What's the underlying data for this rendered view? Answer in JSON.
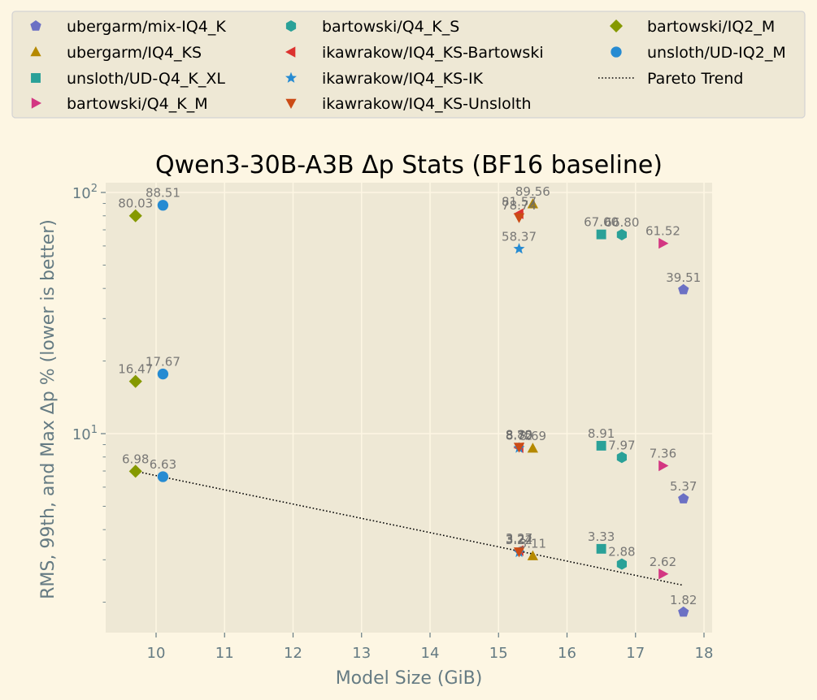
{
  "chart_data": {
    "type": "scatter",
    "title": "Qwen3-30B-A3B Δp Stats (BF16 baseline)",
    "xlabel": "Model Size (GiB)",
    "ylabel": "RMS, 99th, and Max Δp % (lower is better)",
    "xlim": [
      9.3,
      18.1
    ],
    "ylim": [
      1.55,
      115
    ],
    "yscale": "log",
    "grid": true,
    "legend_position": "top",
    "x_ticks": [
      {
        "value": 10,
        "label": "10"
      },
      {
        "value": 11,
        "label": "11"
      },
      {
        "value": 12,
        "label": "12"
      },
      {
        "value": 13,
        "label": "13"
      },
      {
        "value": 14,
        "label": "14"
      },
      {
        "value": 15,
        "label": "15"
      },
      {
        "value": 16,
        "label": "16"
      },
      {
        "value": 17,
        "label": "17"
      },
      {
        "value": 18,
        "label": "18"
      }
    ],
    "y_ticks": [
      {
        "value": 10,
        "base": "10",
        "exp": "1"
      },
      {
        "value": 100,
        "base": "10",
        "exp": "2"
      }
    ],
    "series": [
      {
        "name": "ubergarm/mix-IQ4_K",
        "marker": "pentagon",
        "color": "#6c71c4",
        "x": 17.7,
        "points": [
          {
            "y": 39.51,
            "label": "39.51"
          },
          {
            "y": 5.37,
            "label": "5.37"
          },
          {
            "y": 1.82,
            "label": "1.82"
          }
        ]
      },
      {
        "name": "ubergarm/IQ4_KS",
        "marker": "triangle-up",
        "color": "#b58900",
        "x": 15.5,
        "points": [
          {
            "y": 89.56,
            "label": "89.56"
          },
          {
            "y": 8.69,
            "label": "8.69"
          },
          {
            "y": 3.11,
            "label": "3.11"
          }
        ]
      },
      {
        "name": "unsloth/UD-Q4_K_XL",
        "marker": "square",
        "color": "#2aa198",
        "x": 16.5,
        "points": [
          {
            "y": 67.0,
            "label": "67.00"
          },
          {
            "y": 8.91,
            "label": "8.91"
          },
          {
            "y": 3.33,
            "label": "3.33"
          }
        ]
      },
      {
        "name": "bartowski/Q4_K_M",
        "marker": "triangle-right",
        "color": "#d33682",
        "x": 17.4,
        "points": [
          {
            "y": 61.52,
            "label": "61.52"
          },
          {
            "y": 7.36,
            "label": "7.36"
          },
          {
            "y": 2.62,
            "label": "2.62"
          }
        ]
      },
      {
        "name": "bartowski/Q4_K_S",
        "marker": "hexagon",
        "color": "#2aa198",
        "x": 16.8,
        "points": [
          {
            "y": 66.8,
            "label": "66.80"
          },
          {
            "y": 7.97,
            "label": "7.97"
          },
          {
            "y": 2.88,
            "label": "2.88"
          }
        ]
      },
      {
        "name": "ikawrakow/IQ4_KS-Bartowski",
        "marker": "triangle-left",
        "color": "#dc322f",
        "x": 15.3,
        "points": [
          {
            "y": 81.57,
            "label": "81.57"
          },
          {
            "y": 8.75,
            "label": "8.75"
          },
          {
            "y": 3.27,
            "label": "3.27"
          }
        ]
      },
      {
        "name": "ikawrakow/IQ4_KS-IK",
        "marker": "star",
        "color": "#268bd2",
        "x": 15.3,
        "points": [
          {
            "y": 58.37,
            "label": "58.37"
          },
          {
            "y": 8.72,
            "label": "8.72"
          },
          {
            "y": 3.22,
            "label": "3.22"
          }
        ]
      },
      {
        "name": "ikawrakow/IQ4_KS-Unslolth",
        "marker": "triangle-down",
        "color": "#cb4b16",
        "x": 15.3,
        "points": [
          {
            "y": 78.74,
            "label": "78.74"
          },
          {
            "y": 8.8,
            "label": "8.80"
          },
          {
            "y": 3.24,
            "label": "3.24"
          }
        ]
      },
      {
        "name": "bartowski/IQ2_M",
        "marker": "diamond",
        "color": "#859900",
        "x": 9.7,
        "points": [
          {
            "y": 80.03,
            "label": "80.03"
          },
          {
            "y": 16.47,
            "label": "16.47"
          },
          {
            "y": 6.98,
            "label": "6.98"
          }
        ]
      },
      {
        "name": "unsloth/UD-IQ2_M",
        "marker": "circle",
        "color": "#268bd2",
        "x": 10.1,
        "points": [
          {
            "y": 88.51,
            "label": "88.51"
          },
          {
            "y": 17.67,
            "label": "17.67"
          },
          {
            "y": 6.63,
            "label": "6.63"
          }
        ]
      }
    ],
    "trend": {
      "name": "Pareto Trend",
      "style": "dotted",
      "color": "#000000",
      "points": [
        {
          "x": 9.7,
          "y": 6.98
        },
        {
          "x": 17.7,
          "y": 2.35
        }
      ]
    },
    "legend_columns": [
      [
        "ubergarm/mix-IQ4_K",
        "ubergarm/IQ4_KS",
        "unsloth/UD-Q4_K_XL",
        "bartowski/Q4_K_M"
      ],
      [
        "bartowski/Q4_K_S",
        "ikawrakow/IQ4_KS-Bartowski",
        "ikawrakow/IQ4_KS-IK",
        "ikawrakow/IQ4_KS-Unslolth"
      ],
      [
        "bartowski/IQ2_M",
        "unsloth/UD-IQ2_M",
        "Pareto Trend"
      ]
    ]
  },
  "colors": {
    "figure_bg": "#fdf6e3",
    "axes_bg": "#eee8d5",
    "grid": "#fdf6e3",
    "axis_text": "#657b83",
    "point_label": "#6b6b6b",
    "legend_bg": "#eee8d5",
    "legend_border": "#d3d3d3"
  }
}
